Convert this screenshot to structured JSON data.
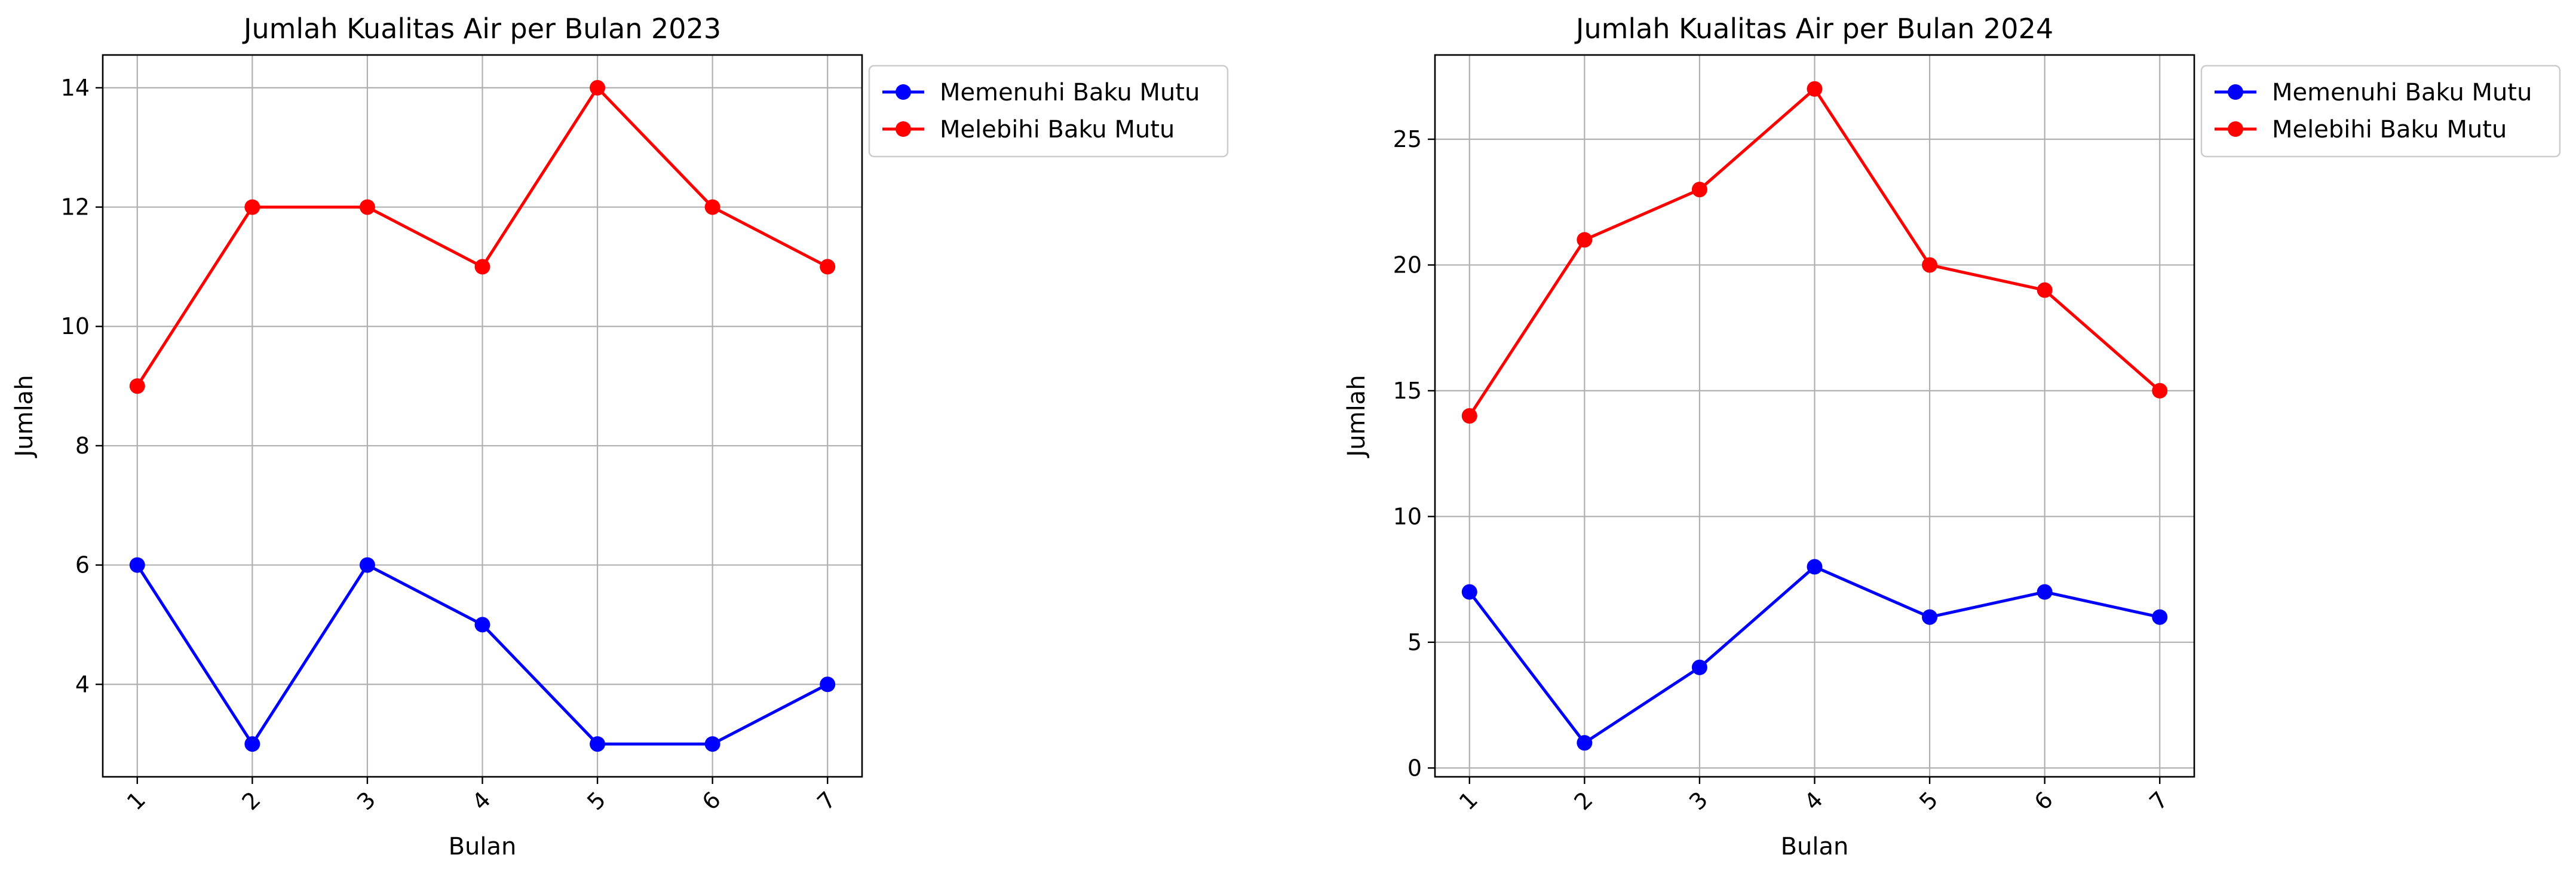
{
  "chart_data": [
    {
      "type": "line",
      "title": "Jumlah Kualitas Air per Bulan 2023",
      "xlabel": "Bulan",
      "ylabel": "Jumlah",
      "categories": [
        "1",
        "2",
        "3",
        "4",
        "5",
        "6",
        "7"
      ],
      "ylim": [
        2.45,
        14.55
      ],
      "yticks": [
        4,
        6,
        8,
        10,
        12,
        14
      ],
      "grid": true,
      "legend": "upper-right-outside",
      "series": [
        {
          "name": "Memenuhi Baku Mutu",
          "color": "#0000ff",
          "values": [
            6,
            3,
            6,
            5,
            3,
            3,
            4
          ]
        },
        {
          "name": "Melebihi Baku Mutu",
          "color": "#ff0000",
          "values": [
            9,
            12,
            12,
            11,
            14,
            12,
            11
          ]
        }
      ]
    },
    {
      "type": "line",
      "title": "Jumlah Kualitas Air per Bulan 2024",
      "xlabel": "Bulan",
      "ylabel": "Jumlah",
      "categories": [
        "1",
        "2",
        "3",
        "4",
        "5",
        "6",
        "7"
      ],
      "ylim": [
        -0.35,
        28.35
      ],
      "yticks": [
        0,
        5,
        10,
        15,
        20,
        25
      ],
      "grid": true,
      "legend": "upper-right-outside",
      "series": [
        {
          "name": "Memenuhi Baku Mutu",
          "color": "#0000ff",
          "values": [
            7,
            1,
            4,
            8,
            6,
            7,
            6
          ]
        },
        {
          "name": "Melebihi Baku Mutu",
          "color": "#ff0000",
          "values": [
            14,
            21,
            23,
            27,
            20,
            19,
            15
          ]
        }
      ]
    }
  ]
}
